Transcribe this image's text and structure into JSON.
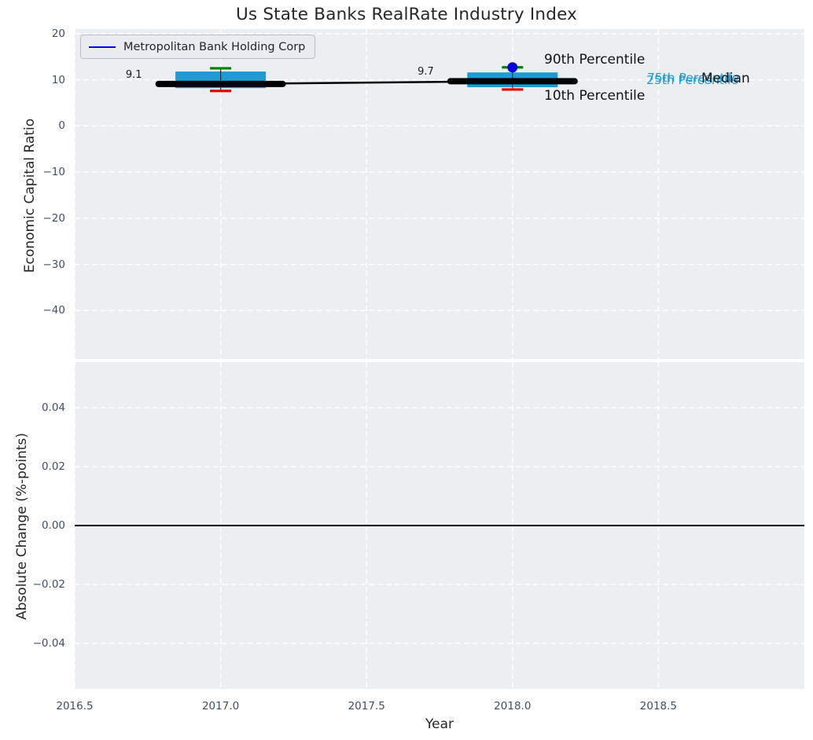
{
  "title": "Us State Banks RealRate Industry Index",
  "legend": {
    "label": "Metropolitan Bank Holding Corp",
    "line_color": "#0000ff"
  },
  "colors": {
    "plot_bg": "#eceff1",
    "grid": "#ffffff",
    "box_fill": "#1c9bd5",
    "median_line": "#000000",
    "p90_cap": "#008000",
    "p10_cap": "#e50000",
    "company_point": "#0000e0",
    "tick_text": "#3f4f63",
    "annotation_cyan": "#1f9cd7"
  },
  "chart_data": [
    {
      "type": "boxplot+line",
      "title": "Us State Banks RealRate Industry Index",
      "ylabel": "Economic Capital Ratio",
      "ylim": [
        -50.5,
        21
      ],
      "xlim": [
        2016.5,
        2019.0
      ],
      "grid": "white dashed",
      "legend_position": "upper left",
      "yticks": [
        {
          "v": 20,
          "label": "20"
        },
        {
          "v": 10,
          "label": "10"
        },
        {
          "v": 0,
          "label": "0"
        },
        {
          "v": -10,
          "label": "−10"
        },
        {
          "v": -20,
          "label": "−20"
        },
        {
          "v": -30,
          "label": "−30"
        },
        {
          "v": -40,
          "label": "−40"
        }
      ],
      "boxes": [
        {
          "x": 2017,
          "p10": 7.6,
          "q1": 8.2,
          "median": 9.1,
          "q3": 11.8,
          "p90": 12.5,
          "median_label": "9.1"
        },
        {
          "x": 2018,
          "p10": 7.9,
          "q1": 8.4,
          "median": 9.7,
          "q3": 11.6,
          "p90": 12.7,
          "median_label": "9.7"
        }
      ],
      "median_line": {
        "x": [
          2017,
          2018
        ],
        "y": [
          9.1,
          9.7
        ]
      },
      "company_series": {
        "name": "Metropolitan Bank Holding Corp",
        "points": [
          {
            "x": 2018,
            "y": 12.7
          }
        ]
      },
      "annotations": {
        "p90": "90th Percentile",
        "p10": "10th Percentile",
        "p75": "75th Percentile",
        "p25": "25th Percentile",
        "median": "Median"
      }
    },
    {
      "type": "line",
      "ylabel": "Absolute Change (%-points)",
      "xlabel": "Year",
      "ylim": [
        -0.0555,
        0.0555
      ],
      "xlim": [
        2016.5,
        2019.0
      ],
      "grid": "white dashed",
      "yticks": [
        {
          "v": 0.04,
          "label": "0.04"
        },
        {
          "v": 0.02,
          "label": "0.02"
        },
        {
          "v": 0.0,
          "label": "0.00"
        },
        {
          "v": -0.02,
          "label": "−0.02"
        },
        {
          "v": -0.04,
          "label": "−0.04"
        }
      ],
      "xticks": [
        {
          "v": 2016.5,
          "label": "2016.5"
        },
        {
          "v": 2017.0,
          "label": "2017.0"
        },
        {
          "v": 2017.5,
          "label": "2017.5"
        },
        {
          "v": 2018.0,
          "label": "2018.0"
        },
        {
          "v": 2018.5,
          "label": "2018.5"
        }
      ],
      "zero_line_y": 0.0
    }
  ]
}
